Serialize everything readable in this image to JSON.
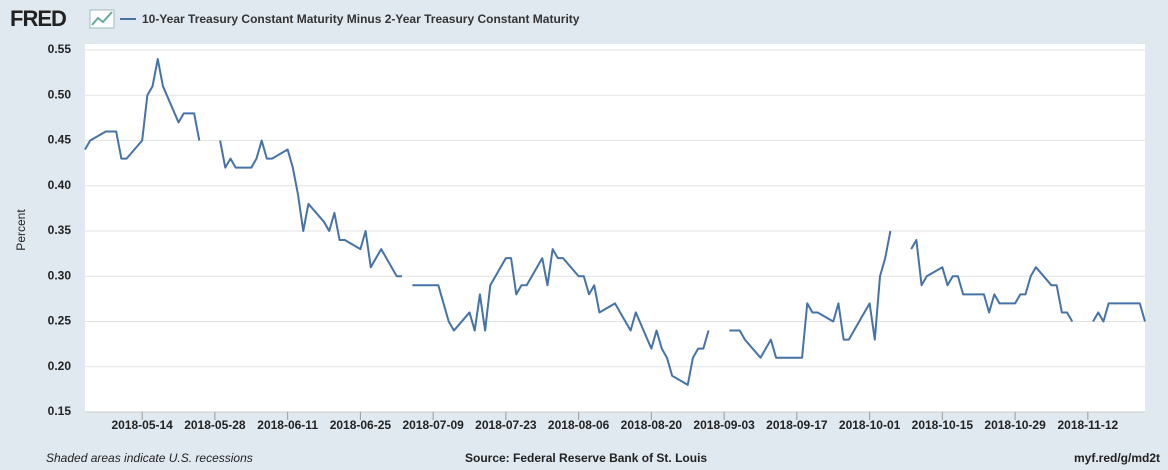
{
  "logo": "FRED",
  "chart_data": {
    "type": "line",
    "y_label": "Percent",
    "x": [
      "2018-05-03",
      "2018-05-04",
      "2018-05-07",
      "2018-05-08",
      "2018-05-09",
      "2018-05-10",
      "2018-05-11",
      "2018-05-14",
      "2018-05-15",
      "2018-05-16",
      "2018-05-17",
      "2018-05-18",
      "2018-05-21",
      "2018-05-22",
      "2018-05-23",
      "2018-05-24",
      "2018-05-25",
      "2018-05-28",
      "2018-05-29",
      "2018-05-30",
      "2018-05-31",
      "2018-06-01",
      "2018-06-04",
      "2018-06-05",
      "2018-06-06",
      "2018-06-07",
      "2018-06-08",
      "2018-06-11",
      "2018-06-12",
      "2018-06-13",
      "2018-06-14",
      "2018-06-15",
      "2018-06-18",
      "2018-06-19",
      "2018-06-20",
      "2018-06-21",
      "2018-06-22",
      "2018-06-25",
      "2018-06-26",
      "2018-06-27",
      "2018-06-28",
      "2018-06-29",
      "2018-07-02",
      "2018-07-03",
      "2018-07-04",
      "2018-07-05",
      "2018-07-06",
      "2018-07-09",
      "2018-07-10",
      "2018-07-11",
      "2018-07-12",
      "2018-07-13",
      "2018-07-16",
      "2018-07-17",
      "2018-07-18",
      "2018-07-19",
      "2018-07-20",
      "2018-07-23",
      "2018-07-24",
      "2018-07-25",
      "2018-07-26",
      "2018-07-27",
      "2018-07-30",
      "2018-07-31",
      "2018-08-01",
      "2018-08-02",
      "2018-08-03",
      "2018-08-06",
      "2018-08-07",
      "2018-08-08",
      "2018-08-09",
      "2018-08-10",
      "2018-08-13",
      "2018-08-14",
      "2018-08-15",
      "2018-08-16",
      "2018-08-17",
      "2018-08-20",
      "2018-08-21",
      "2018-08-22",
      "2018-08-23",
      "2018-08-24",
      "2018-08-27",
      "2018-08-28",
      "2018-08-29",
      "2018-08-30",
      "2018-08-31",
      "2018-09-03",
      "2018-09-04",
      "2018-09-05",
      "2018-09-06",
      "2018-09-07",
      "2018-09-10",
      "2018-09-11",
      "2018-09-12",
      "2018-09-13",
      "2018-09-14",
      "2018-09-17",
      "2018-09-18",
      "2018-09-19",
      "2018-09-20",
      "2018-09-21",
      "2018-09-24",
      "2018-09-25",
      "2018-09-26",
      "2018-09-27",
      "2018-09-28",
      "2018-10-01",
      "2018-10-02",
      "2018-10-03",
      "2018-10-04",
      "2018-10-05",
      "2018-10-08",
      "2018-10-09",
      "2018-10-10",
      "2018-10-11",
      "2018-10-12",
      "2018-10-15",
      "2018-10-16",
      "2018-10-17",
      "2018-10-18",
      "2018-10-19",
      "2018-10-22",
      "2018-10-23",
      "2018-10-24",
      "2018-10-25",
      "2018-10-26",
      "2018-10-29",
      "2018-10-30",
      "2018-10-31",
      "2018-11-01",
      "2018-11-02",
      "2018-11-05",
      "2018-11-06",
      "2018-11-07",
      "2018-11-08",
      "2018-11-09",
      "2018-11-12",
      "2018-11-13",
      "2018-11-14",
      "2018-11-15",
      "2018-11-16",
      "2018-11-19",
      "2018-11-20",
      "2018-11-21",
      "2018-11-22",
      "2018-11-23"
    ],
    "series": [
      {
        "name": "10-Year Treasury Constant Maturity Minus 2-Year Treasury Constant Maturity",
        "color": "#4572a7",
        "values": [
          0.44,
          0.45,
          0.46,
          0.46,
          0.46,
          0.43,
          0.43,
          0.45,
          0.5,
          0.51,
          0.54,
          0.51,
          0.47,
          0.48,
          0.48,
          0.48,
          0.45,
          null,
          0.45,
          0.42,
          0.43,
          0.42,
          0.42,
          0.43,
          0.45,
          0.43,
          0.43,
          0.44,
          0.42,
          0.39,
          0.35,
          0.38,
          0.36,
          0.35,
          0.37,
          0.34,
          0.34,
          0.33,
          0.35,
          0.31,
          0.32,
          0.33,
          0.3,
          0.3,
          null,
          0.29,
          0.29,
          0.29,
          0.29,
          0.27,
          0.25,
          0.24,
          0.26,
          0.24,
          0.28,
          0.24,
          0.29,
          0.32,
          0.32,
          0.28,
          0.29,
          0.29,
          0.32,
          0.29,
          0.33,
          0.32,
          0.32,
          0.3,
          0.3,
          0.28,
          0.29,
          0.26,
          0.27,
          0.26,
          0.25,
          0.24,
          0.26,
          0.22,
          0.24,
          0.22,
          0.21,
          0.19,
          0.18,
          0.21,
          0.22,
          0.22,
          0.24,
          null,
          0.24,
          0.24,
          0.24,
          0.23,
          0.21,
          0.22,
          0.23,
          0.21,
          0.21,
          0.21,
          0.21,
          0.27,
          0.26,
          0.26,
          0.25,
          0.27,
          0.23,
          0.23,
          0.24,
          0.27,
          0.23,
          0.3,
          0.32,
          0.35,
          null,
          0.33,
          0.34,
          0.29,
          0.3,
          0.31,
          0.29,
          0.3,
          0.3,
          0.28,
          0.28,
          0.28,
          0.26,
          0.28,
          0.27,
          0.27,
          0.28,
          0.28,
          0.3,
          0.31,
          0.29,
          0.29,
          0.26,
          0.26,
          0.25,
          null,
          0.25,
          0.26,
          0.25,
          0.27,
          0.27,
          0.27,
          0.27,
          0.27,
          0.25
        ]
      }
    ],
    "xlim": [
      "2018-05-03",
      "2018-11-23"
    ],
    "xticks": [
      "2018-05-14",
      "2018-05-28",
      "2018-06-11",
      "2018-06-25",
      "2018-07-09",
      "2018-07-23",
      "2018-08-06",
      "2018-08-20",
      "2018-09-03",
      "2018-09-17",
      "2018-10-01",
      "2018-10-15",
      "2018-10-29",
      "2018-11-12"
    ],
    "ylim": [
      0.15,
      0.55
    ],
    "yticks": [
      0.15,
      {
        "value": 0.2,
        "label": "0.20"
      },
      0.25,
      {
        "value": 0.3,
        "label": "0.30"
      },
      0.35,
      {
        "value": 0.4,
        "label": "0.40"
      },
      0.45,
      {
        "value": 0.5,
        "label": "0.50"
      },
      0.55
    ],
    "grid": true
  },
  "footer": {
    "note": "Shaded areas indicate U.S. recessions",
    "source": "Source: Federal Reserve Bank of St. Louis",
    "link": "myf.red/g/md2t"
  }
}
